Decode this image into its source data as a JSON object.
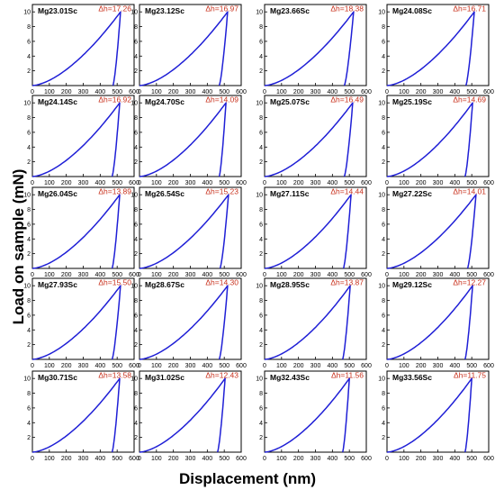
{
  "chart_data": {
    "type": "line",
    "xlabel": "Displacement (nm)",
    "ylabel": "Load on sample (mN)",
    "xlim": [
      0,
      600
    ],
    "ylim": [
      0,
      11
    ],
    "xticks": [
      0,
      100,
      200,
      300,
      400,
      500,
      600
    ],
    "yticks": [
      2,
      4,
      6,
      8,
      10
    ],
    "line_color": "#1f1fd6",
    "label_color": "#c8321e",
    "grid": false,
    "panels": [
      {
        "label": "Mg23.01Sc",
        "dh": "Δh=17.26",
        "hmax": 520,
        "hf": 475,
        "pmax": 10
      },
      {
        "label": "Mg23.12Sc",
        "dh": "Δh=16.97",
        "hmax": 520,
        "hf": 470,
        "pmax": 10
      },
      {
        "label": "Mg23.66Sc",
        "dh": "Δh=18.38",
        "hmax": 525,
        "hf": 470,
        "pmax": 10
      },
      {
        "label": "Mg24.08Sc",
        "dh": "Δh=16.71",
        "hmax": 515,
        "hf": 465,
        "pmax": 10
      },
      {
        "label": "Mg24.14Sc",
        "dh": "Δh=16.92",
        "hmax": 515,
        "hf": 470,
        "pmax": 10
      },
      {
        "label": "Mg24.70Sc",
        "dh": "Δh=14.09",
        "hmax": 510,
        "hf": 470,
        "pmax": 10
      },
      {
        "label": "Mg25.07Sc",
        "dh": "Δh=16.49",
        "hmax": 520,
        "hf": 470,
        "pmax": 10
      },
      {
        "label": "Mg25.19Sc",
        "dh": "Δh=14.69",
        "hmax": 505,
        "hf": 460,
        "pmax": 10
      },
      {
        "label": "Mg26.04Sc",
        "dh": "Δh=13.89",
        "hmax": 515,
        "hf": 470,
        "pmax": 10
      },
      {
        "label": "Mg26.54Sc",
        "dh": "Δh=15.23",
        "hmax": 525,
        "hf": 475,
        "pmax": 10
      },
      {
        "label": "Mg27.11Sc",
        "dh": "Δh=14.44",
        "hmax": 510,
        "hf": 465,
        "pmax": 10
      },
      {
        "label": "Mg27.22Sc",
        "dh": "Δh=14.01",
        "hmax": 525,
        "hf": 475,
        "pmax": 10
      },
      {
        "label": "Mg27.93Sc",
        "dh": "Δh=15.50",
        "hmax": 520,
        "hf": 470,
        "pmax": 10
      },
      {
        "label": "Mg28.67Sc",
        "dh": "Δh=14.30",
        "hmax": 520,
        "hf": 470,
        "pmax": 10
      },
      {
        "label": "Mg28.95Sc",
        "dh": "Δh=13.87",
        "hmax": 505,
        "hf": 460,
        "pmax": 10
      },
      {
        "label": "Mg29.12Sc",
        "dh": "Δh=12.27",
        "hmax": 505,
        "hf": 460,
        "pmax": 10
      },
      {
        "label": "Mg30.71Sc",
        "dh": "Δh=13.58",
        "hmax": 515,
        "hf": 470,
        "pmax": 10
      },
      {
        "label": "Mg31.02Sc",
        "dh": "Δh=12.43",
        "hmax": 505,
        "hf": 460,
        "pmax": 10
      },
      {
        "label": "Mg32.43Sc",
        "dh": "Δh=11.56",
        "hmax": 500,
        "hf": 460,
        "pmax": 10
      },
      {
        "label": "Mg33.56Sc",
        "dh": "Δh=11.75",
        "hmax": 500,
        "hf": 460,
        "pmax": 10
      }
    ]
  }
}
